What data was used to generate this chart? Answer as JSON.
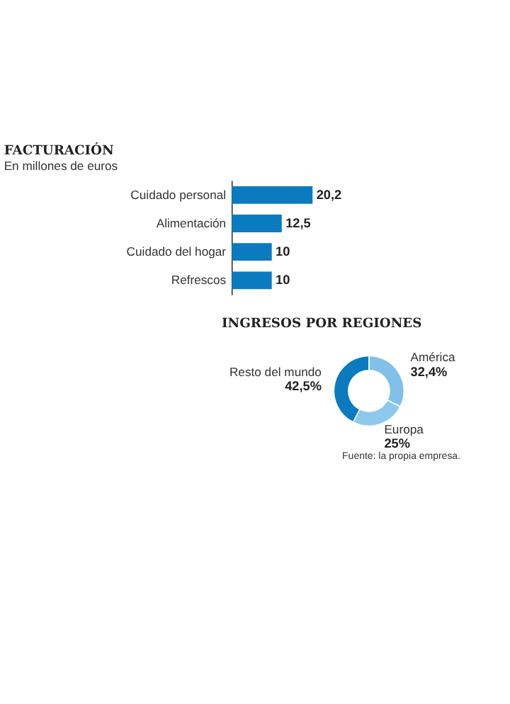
{
  "chart_data": [
    {
      "type": "bar",
      "orientation": "horizontal",
      "title": "FACTURACIÓN",
      "subtitle": "En millones de euros",
      "categories": [
        "Cuidado personal",
        "Alimentación",
        "Cuidado del hogar",
        "Refrescos"
      ],
      "values": [
        20.2,
        12.5,
        10,
        10
      ],
      "color": "#0a7bbf",
      "value_labels": [
        "20,2",
        "12,5",
        "10",
        "10"
      ]
    },
    {
      "type": "donut",
      "title": "INGRESOS POR REGIONES",
      "categories": [
        "América",
        "Europa",
        "Resto del mundo"
      ],
      "values": [
        32.4,
        25,
        42.5
      ],
      "colors": [
        "#7fc1e8",
        "#8dc9ec",
        "#0a7bbf"
      ],
      "value_labels": [
        "32,4%",
        "25%",
        "42,5%"
      ],
      "annotations": [
        "Fuente: la propia empresa."
      ]
    }
  ]
}
